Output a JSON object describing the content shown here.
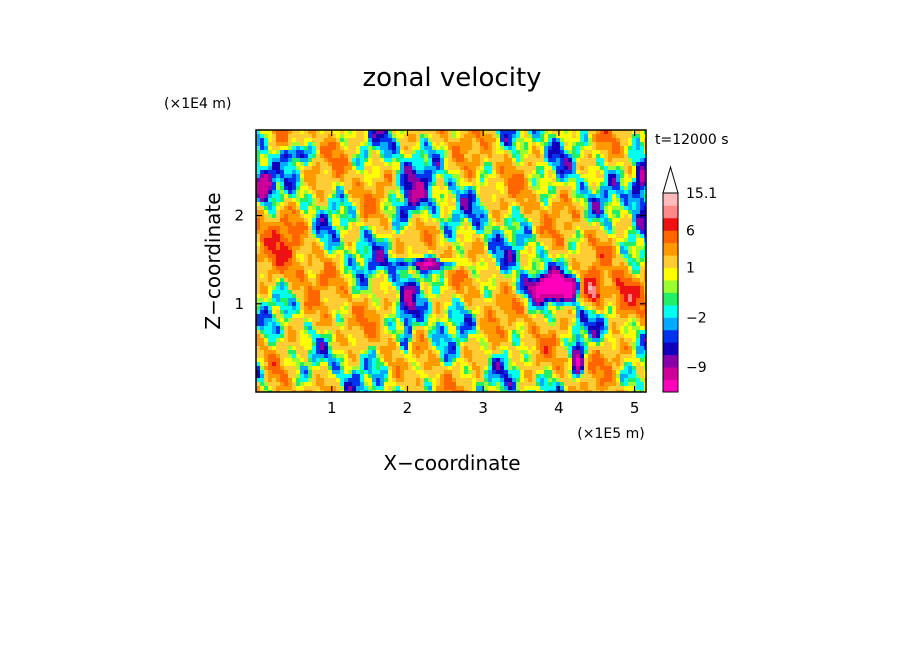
{
  "chart_data": {
    "type": "heatmap",
    "title": "zonal velocity",
    "xlabel": "X−coordinate",
    "ylabel": "Z−coordinate",
    "x_unit": "(×1E5 m)",
    "y_unit": "(×1E4 m)",
    "time_label": "t=12000 s",
    "xlim": [
      0,
      5.15
    ],
    "ylim": [
      0,
      2.97
    ],
    "x_ticks": [
      1,
      2,
      3,
      4,
      5
    ],
    "y_ticks": [
      1,
      2
    ],
    "colorbar": {
      "levels": [
        -12,
        -9,
        -6,
        -4,
        -3,
        -2,
        -1,
        0,
        0.5,
        1,
        2,
        4,
        6,
        9,
        12,
        15.1
      ],
      "colors": [
        "#ff00bb",
        "#cc0099",
        "#8800aa",
        "#1100bb",
        "#0033ee",
        "#00aaff",
        "#00ffee",
        "#22ee66",
        "#99ff33",
        "#ffff00",
        "#ffcc33",
        "#ff9900",
        "#ff6600",
        "#ee1111",
        "#ff8888",
        "#ffbbbb"
      ],
      "tick_labels": [
        "15.1",
        "6",
        "1",
        "−2",
        "−9"
      ]
    },
    "field_cells": []
  }
}
